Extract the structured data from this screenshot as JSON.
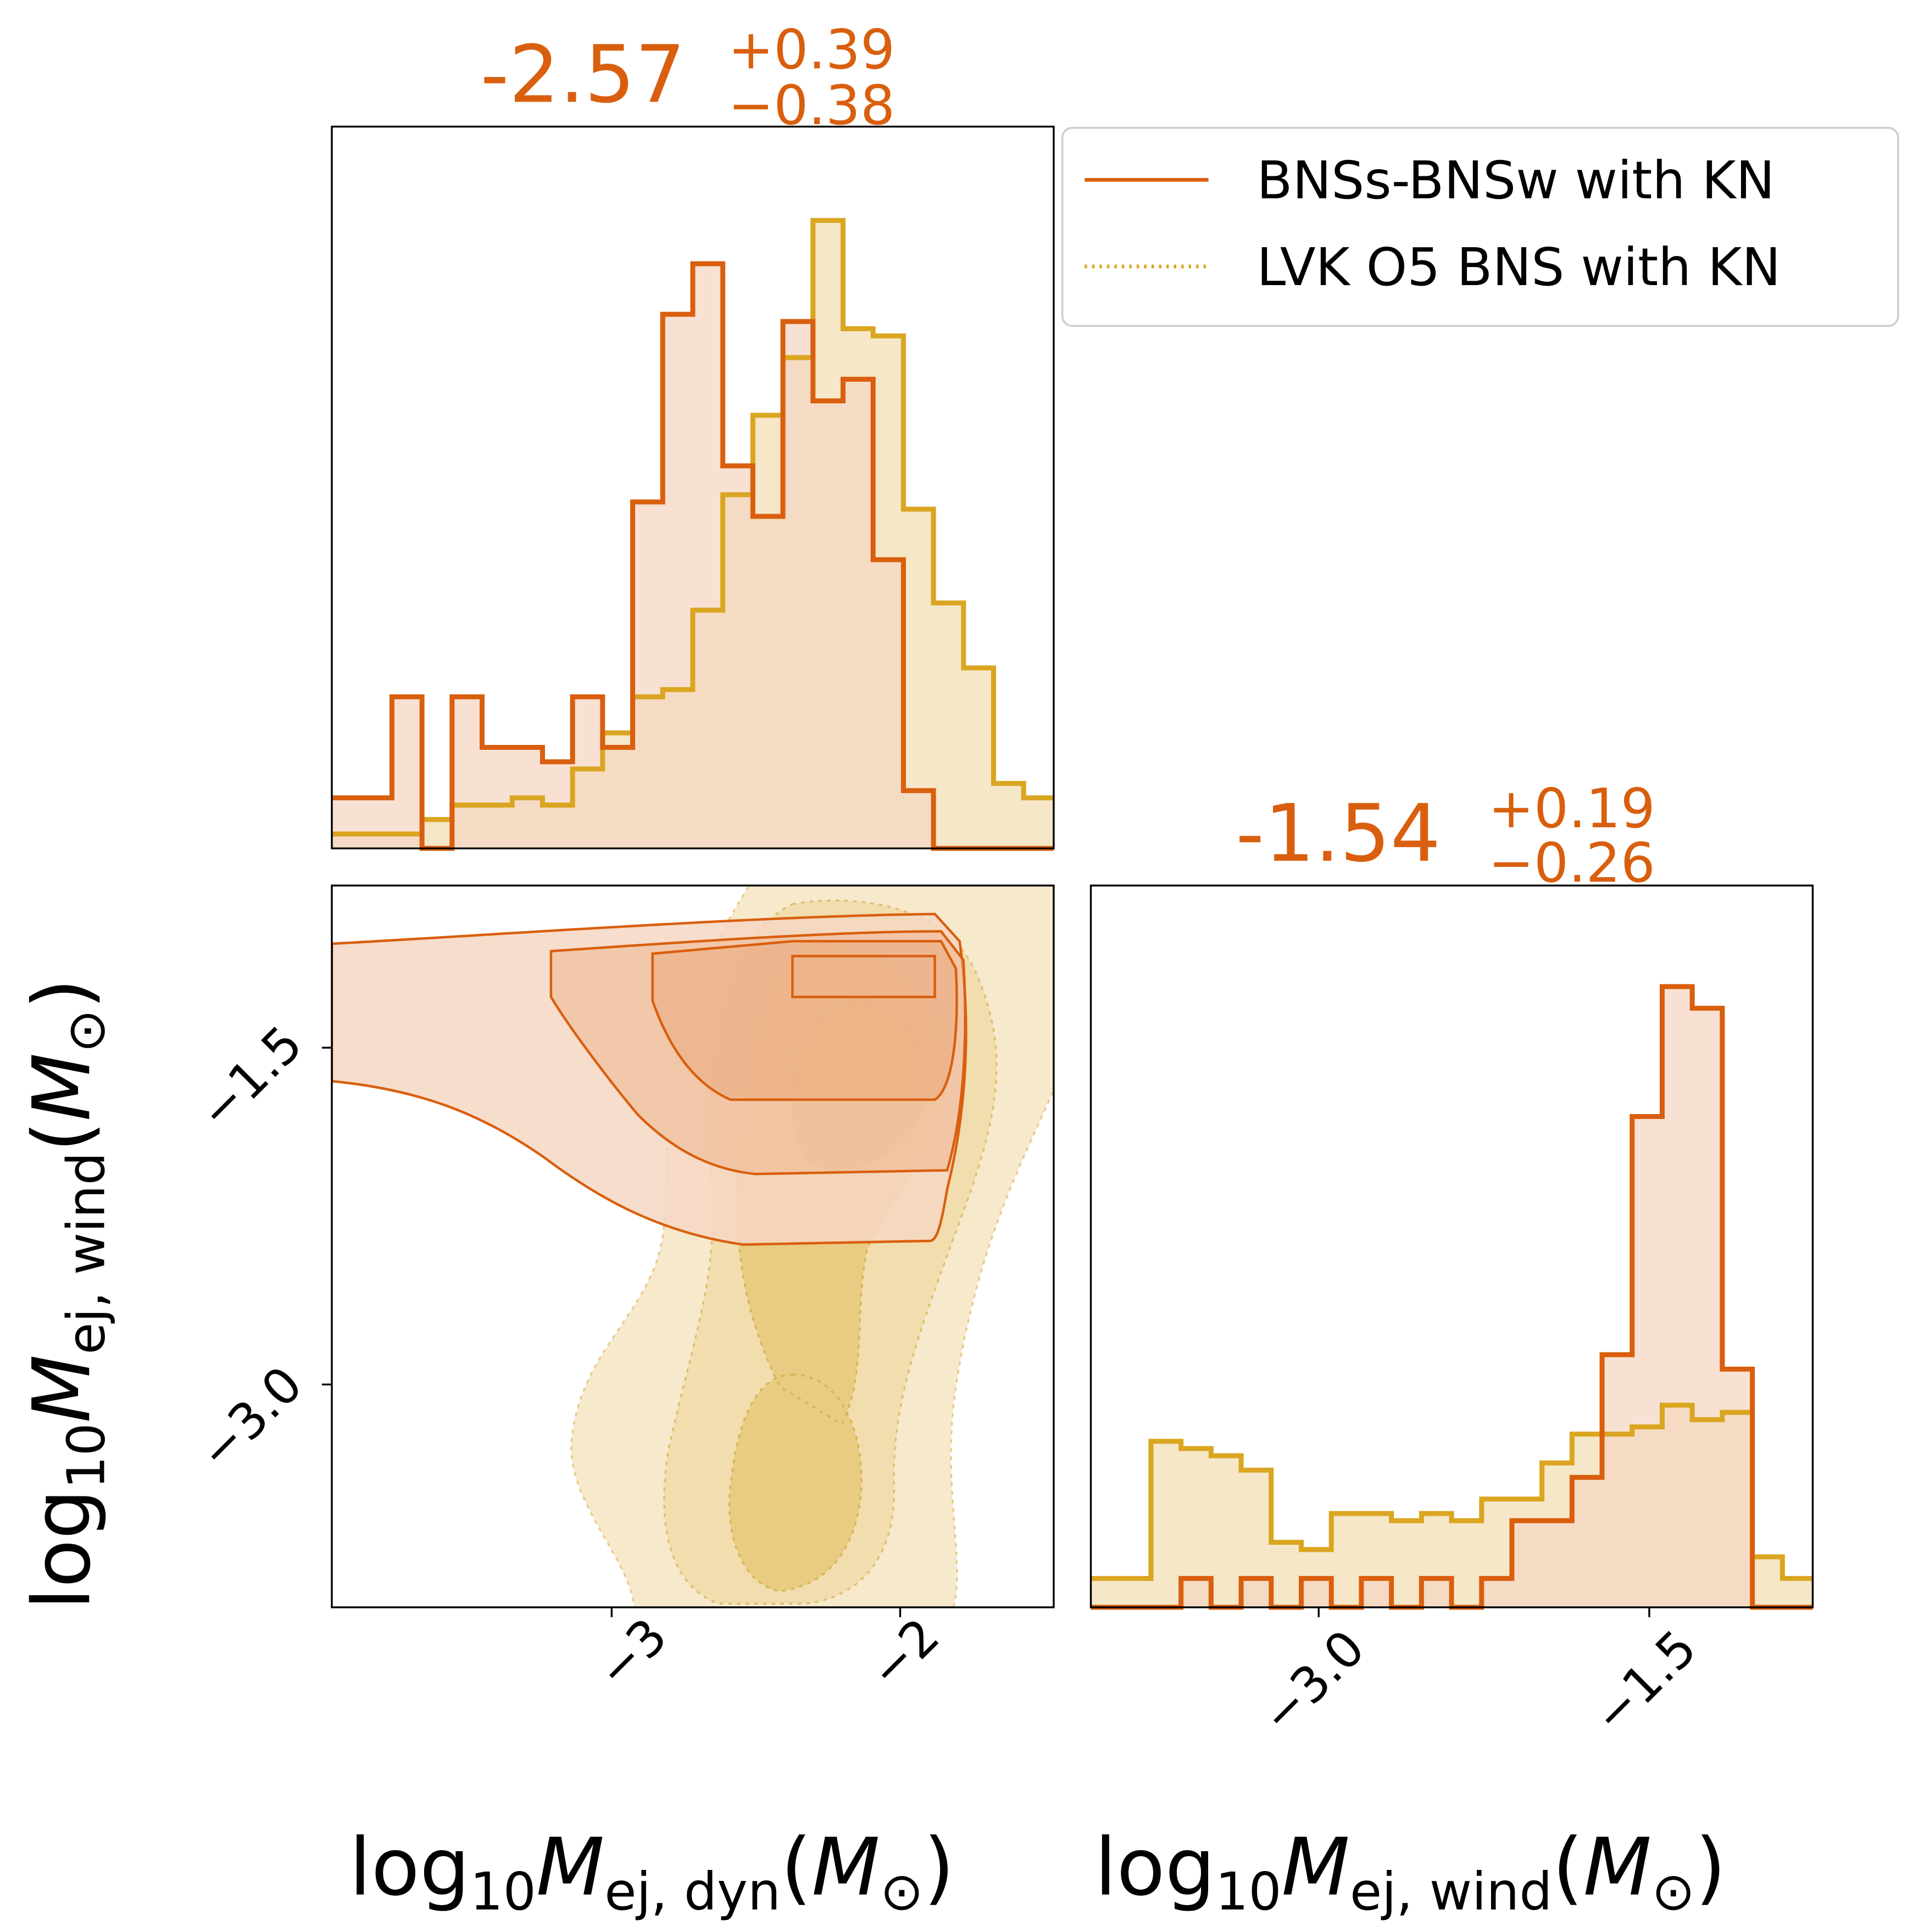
{
  "colors": {
    "bnss": "#d95f0e",
    "bnss_fill": "#f6d7c3",
    "lvk": "#daa520",
    "lvk_fill": "#f5e7c7",
    "overlap_fill": "#edc89a",
    "axis": "#000000"
  },
  "chart_data": [
    {
      "type": "histogram",
      "name": "marginal-mej-dyn",
      "xlim": [
        -3.95,
        -1.5
      ],
      "bin_edges": [
        -3.95,
        -3.848,
        -3.746,
        -3.644,
        -3.542,
        -3.44,
        -3.338,
        -3.235,
        -3.133,
        -3.031,
        -2.929,
        -2.827,
        -2.725,
        -2.623,
        -2.521,
        -2.419,
        -2.317,
        -2.215,
        -2.113,
        -2.01,
        -1.908,
        -1.806,
        -1.704,
        -1.602,
        -1.5
      ],
      "series": [
        {
          "name": "BNSs-BNSw with KN",
          "values": [
            0.07,
            0.07,
            0.21,
            0.0,
            0.21,
            0.14,
            0.14,
            0.12,
            0.21,
            0.14,
            0.48,
            0.74,
            0.81,
            0.53,
            0.46,
            0.73,
            0.62,
            0.65,
            0.4,
            0.08,
            0.0,
            0.0,
            0.0,
            0.0
          ]
        },
        {
          "name": "LVK O5 BNS with KN",
          "values": [
            0.02,
            0.02,
            0.02,
            0.04,
            0.06,
            0.06,
            0.07,
            0.06,
            0.11,
            0.16,
            0.21,
            0.22,
            0.33,
            0.49,
            0.6,
            0.68,
            0.87,
            0.72,
            0.71,
            0.47,
            0.34,
            0.25,
            0.09,
            0.07
          ]
        }
      ],
      "title_value": "-2.57",
      "title_plus": "+0.39",
      "title_minus": "−0.38"
    },
    {
      "type": "contour",
      "name": "joint-mej-dyn-vs-mej-wind",
      "xlim": [
        -3.95,
        -1.5
      ],
      "ylim": [
        -3.95,
        -0.78
      ],
      "xticks": [
        -3,
        -2
      ],
      "xtick_labels": [
        "−3",
        "−2"
      ],
      "yticks": [
        -1.5,
        -3.0
      ],
      "ytick_labels": [
        "−1.5",
        "−3.0"
      ],
      "xlabel": "log10Mej,dyn(M⊙)",
      "ylabel": "log10Mej,wind(M⊙)",
      "lvk_modes": [
        {
          "label": "main",
          "center": [
            -2.2,
            -1.65
          ],
          "levels": [
            "0.5",
            "1.0",
            "1.5",
            "2.0"
          ]
        },
        {
          "label": "secondary",
          "center": [
            -2.45,
            -3.35
          ],
          "levels": [
            "1.0",
            "1.5",
            "2.0"
          ]
        }
      ],
      "bnss_levels": [
        "0.5",
        "1.0",
        "1.5",
        "2.0"
      ]
    },
    {
      "type": "histogram",
      "name": "marginal-mej-wind",
      "xlim": [
        -3.95,
        -0.78
      ],
      "bin_edges": [
        -3.95,
        -3.818,
        -3.686,
        -3.554,
        -3.422,
        -3.29,
        -3.158,
        -3.026,
        -2.894,
        -2.762,
        -2.63,
        -2.498,
        -2.366,
        -2.234,
        -2.101,
        -1.969,
        -1.837,
        -1.705,
        -1.573,
        -1.441,
        -1.309,
        -1.177,
        -1.045,
        -0.913,
        -0.78
      ],
      "series": [
        {
          "name": "BNSs-BNSw with KN",
          "values": [
            0.0,
            0.0,
            0.0,
            0.04,
            0.0,
            0.04,
            0.0,
            0.04,
            0.0,
            0.04,
            0.0,
            0.04,
            0.0,
            0.04,
            0.12,
            0.12,
            0.18,
            0.35,
            0.68,
            0.86,
            0.83,
            0.33,
            0.0,
            0.0
          ]
        },
        {
          "name": "LVK O5 BNS with KN",
          "values": [
            0.04,
            0.04,
            0.23,
            0.22,
            0.21,
            0.19,
            0.09,
            0.08,
            0.13,
            0.13,
            0.12,
            0.13,
            0.12,
            0.15,
            0.15,
            0.2,
            0.24,
            0.24,
            0.25,
            0.28,
            0.26,
            0.27,
            0.07,
            0.04
          ]
        }
      ],
      "title_value": "-1.54",
      "title_plus": "+0.19",
      "title_minus": "−0.26",
      "xticks": [
        -3.0,
        -1.5
      ],
      "xtick_labels": [
        "−3.0",
        "−1.5"
      ],
      "xlabel": "log10Mej,wind(M⊙)"
    }
  ],
  "legend": {
    "entries": [
      {
        "label": "BNSs-BNSw with KN",
        "style": "solid"
      },
      {
        "label": "LVK O5 BNS with KN",
        "style": "dotted"
      }
    ],
    "position": "top-right"
  },
  "axis_labels": {
    "x1_main": "log",
    "x1_sub": "10",
    "x1_var": "M",
    "x1_varsub": "ej, dyn",
    "x1_unit_open": "(",
    "x1_unit": "M",
    "x1_unit_sub": "⊙",
    "x1_unit_close": ")",
    "x2_main": "log",
    "x2_sub": "10",
    "x2_var": "M",
    "x2_varsub": "ej, wind",
    "x2_unit_open": "(",
    "x2_unit": "M",
    "x2_unit_sub": "⊙",
    "x2_unit_close": ")",
    "y_main": "log",
    "y_sub": "10",
    "y_var": "M",
    "y_varsub": "ej, wind",
    "y_unit_open": "(",
    "y_unit": "M",
    "y_unit_sub": "⊙",
    "y_unit_close": ")"
  }
}
